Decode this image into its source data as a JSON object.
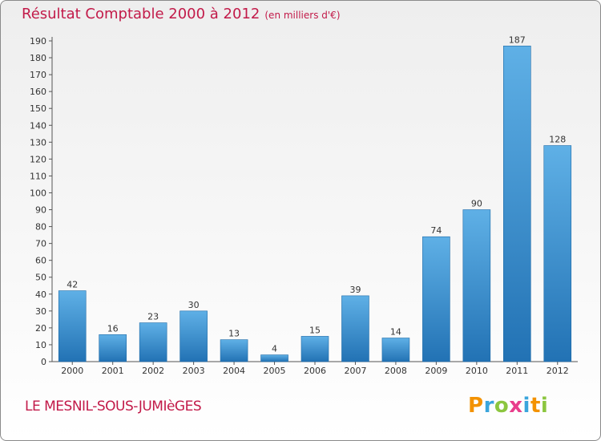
{
  "title": "Résultat Comptable 2000 à 2012",
  "unit_note": "(en milliers d'€)",
  "location": "LE MESNIL-SOUS-JUMIèGES",
  "brand": {
    "letters": [
      "P",
      "r",
      "o",
      "x",
      "i",
      "t",
      "i"
    ],
    "colors": [
      "#f39200",
      "#3aa5dc",
      "#8cc63f",
      "#e83e8c",
      "#3aa5dc",
      "#f39200",
      "#8cc63f"
    ]
  },
  "colors": {
    "title": "#c21a49",
    "bar_top": "#5fb0e6",
    "bar_bottom": "#2272b4",
    "bar_stroke": "#1f6ba8"
  },
  "chart_data": {
    "type": "bar",
    "title": "Résultat Comptable 2000 à 2012",
    "subtitle": "(en milliers d'€)",
    "xlabel": "",
    "ylabel": "",
    "categories": [
      "2000",
      "2001",
      "2002",
      "2003",
      "2004",
      "2005",
      "2006",
      "2007",
      "2008",
      "2009",
      "2010",
      "2011",
      "2012"
    ],
    "values": [
      42,
      16,
      23,
      30,
      13,
      4,
      15,
      39,
      14,
      74,
      90,
      187,
      128
    ],
    "ylim": [
      0,
      190
    ],
    "yticks": [
      0,
      10,
      20,
      30,
      40,
      50,
      60,
      70,
      80,
      90,
      100,
      110,
      120,
      130,
      140,
      150,
      160,
      170,
      180,
      190
    ],
    "grid": false,
    "data_labels": true
  }
}
